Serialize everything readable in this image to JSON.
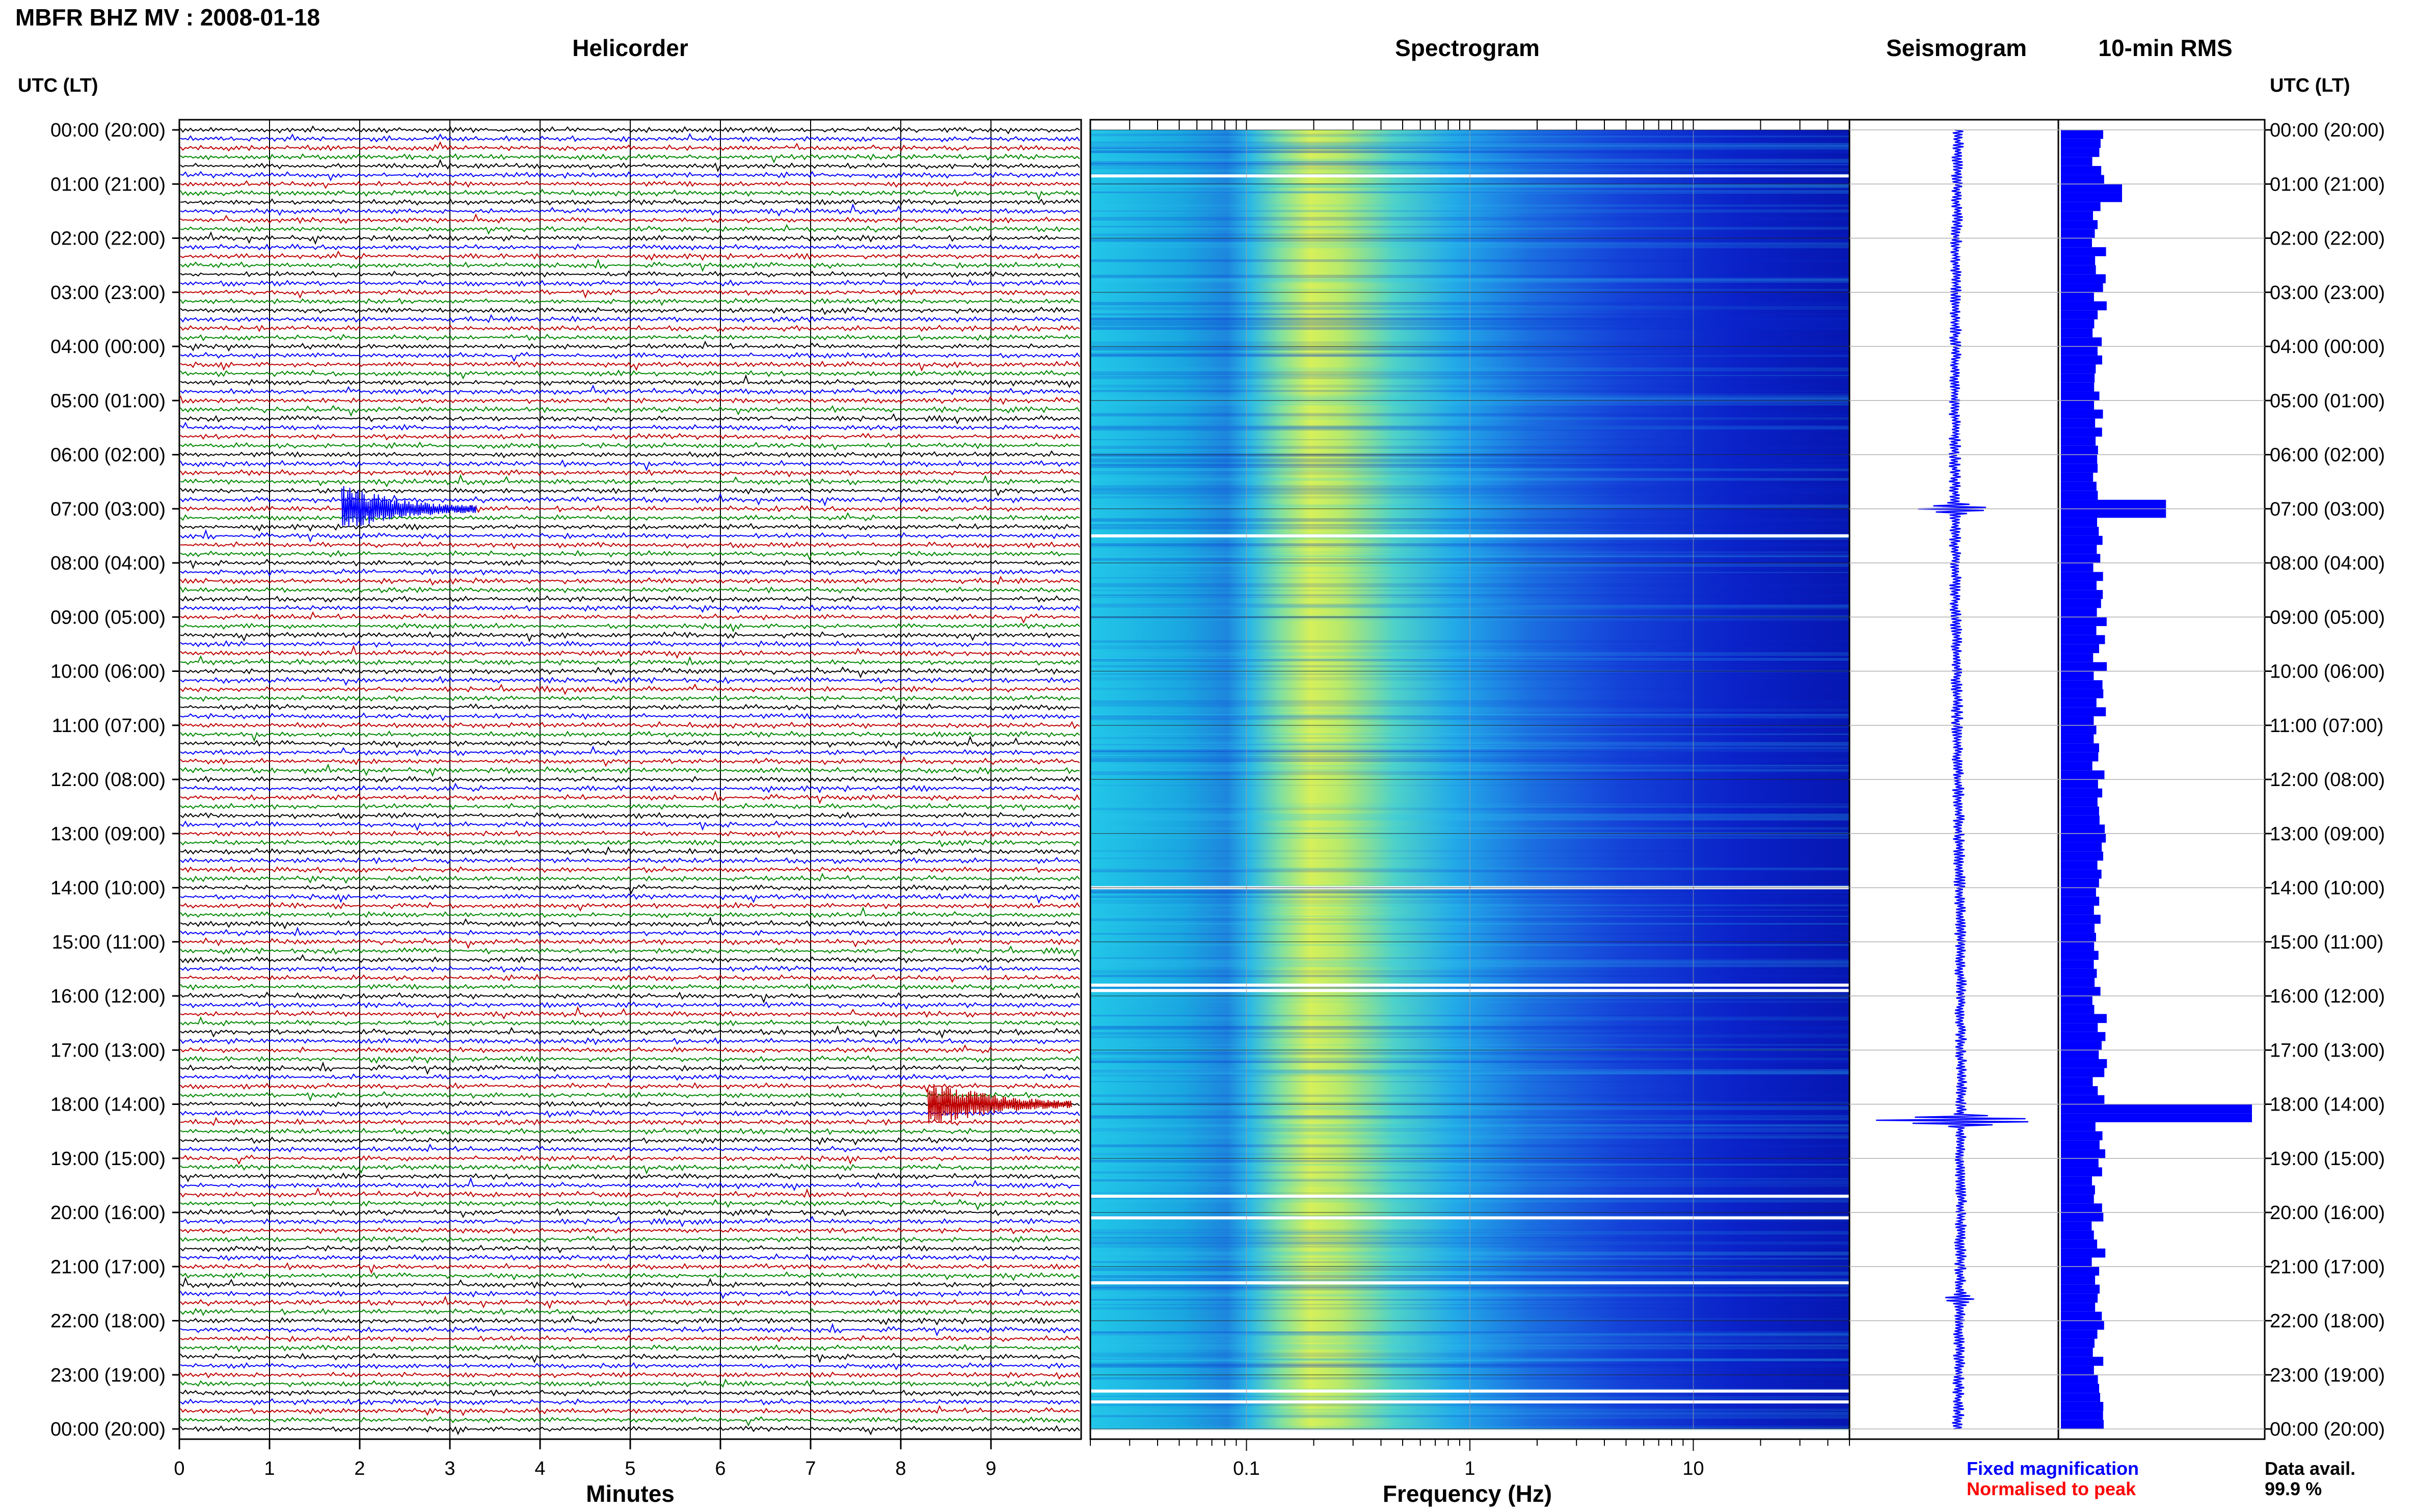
{
  "header": {
    "title": "MBFR BHZ MV : 2008-01-18"
  },
  "panels": {
    "helicorder": "Helicorder",
    "spectrogram": "Spectrogram",
    "seismogram": "Seismogram",
    "rms": "10-min RMS"
  },
  "axis_labels": {
    "left_time": "UTC (LT)",
    "right_time": "UTC (LT)",
    "minutes": "Minutes",
    "frequency": "Frequency (Hz)"
  },
  "legend": {
    "fixed": "Fixed magnification",
    "fixed_color": "#0000ff",
    "normalised": "Normalised to peak",
    "normalised_color": "#ff0000",
    "avail_label": "Data avail.",
    "avail_value": "99.9 %"
  },
  "colors": {
    "trace_cycle": [
      "#000000",
      "#0000ff",
      "#c00000",
      "#008800"
    ],
    "rms_bar": "#0000ff",
    "seismogram": "#0000ff"
  },
  "chart_data": [
    {
      "type": "line",
      "name": "helicorder",
      "xlabel": "Minutes",
      "xlim": [
        0,
        10
      ],
      "x_ticks": [
        0,
        1,
        2,
        3,
        4,
        5,
        6,
        7,
        8,
        9
      ],
      "y_tick_labels": [
        "00:00 (20:00)",
        "01:00 (21:00)",
        "02:00 (22:00)",
        "03:00 (23:00)",
        "04:00 (00:00)",
        "05:00 (01:00)",
        "06:00 (02:00)",
        "07:00 (03:00)",
        "08:00 (04:00)",
        "09:00 (05:00)",
        "10:00 (06:00)",
        "11:00 (07:00)",
        "12:00 (08:00)",
        "13:00 (09:00)",
        "14:00 (10:00)",
        "15:00 (11:00)",
        "16:00 (12:00)",
        "17:00 (13:00)",
        "18:00 (14:00)",
        "19:00 (15:00)",
        "20:00 (16:00)",
        "21:00 (17:00)",
        "22:00 (18:00)",
        "23:00 (19:00)",
        "00:00 (20:00)"
      ],
      "rows_per_hour": 6,
      "events": [
        {
          "hour": 7.0,
          "minute": 1.8,
          "duration_min": 1.5,
          "color": "#0000ff"
        },
        {
          "hour": 18.0,
          "minute": 8.3,
          "duration_min": 1.6,
          "color": "#c00000"
        }
      ]
    },
    {
      "type": "heatmap",
      "name": "spectrogram",
      "xlabel": "Frequency (Hz)",
      "x_scale": "log",
      "xlim": [
        0.02,
        50
      ],
      "x_tick_labels": [
        "0.1",
        "1",
        "10"
      ],
      "ylim_hours": [
        0,
        24
      ],
      "gaps_hours": [
        0.85,
        7.5,
        14.0,
        15.8,
        15.9,
        19.7,
        20.1,
        21.3,
        23.3,
        23.5
      ]
    },
    {
      "type": "line",
      "name": "seismogram",
      "ylim_hours": [
        0,
        24
      ],
      "spikes": [
        {
          "hour": 7.0,
          "amplitude": 0.4
        },
        {
          "hour": 18.3,
          "amplitude": 1.0
        },
        {
          "hour": 21.6,
          "amplitude": 0.15
        }
      ]
    },
    {
      "type": "bar",
      "name": "rms",
      "title": "10-min RMS",
      "ylim_hours": [
        0,
        24
      ],
      "bins_per_hour": 6,
      "peaks": [
        {
          "hour": 7.0,
          "value": 0.55
        },
        {
          "hour": 18.2,
          "value": 1.0
        },
        {
          "hour": 1.2,
          "value": 0.32
        }
      ],
      "base_value": 0.23
    }
  ]
}
